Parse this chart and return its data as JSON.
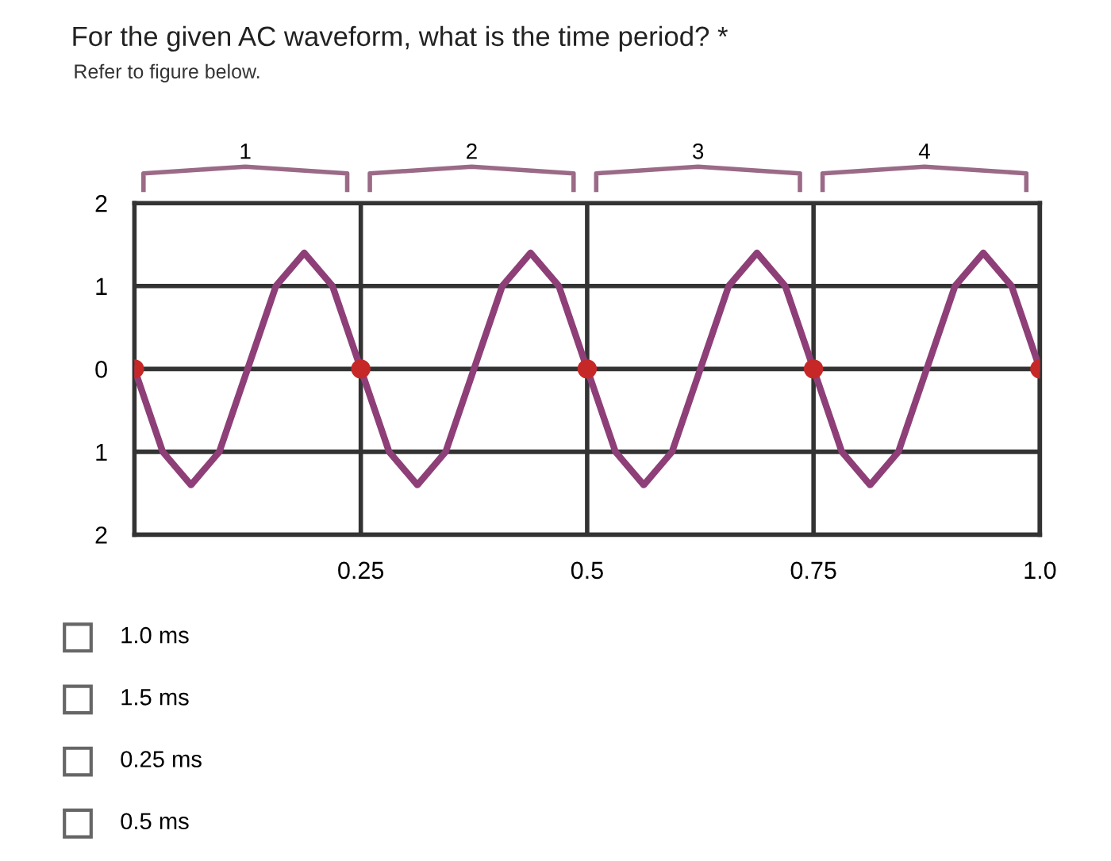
{
  "chart_data": {
    "type": "line",
    "title": "For the given AC waveform, what is the time period? *",
    "subtitle": "Refer to figure below.",
    "x": [
      0,
      0.03125,
      0.0625,
      0.09375,
      0.125,
      0.15625,
      0.1875,
      0.21875,
      0.25,
      0.28125,
      0.3125,
      0.34375,
      0.375,
      0.40625,
      0.4375,
      0.46875,
      0.5,
      0.53125,
      0.5625,
      0.59375,
      0.625,
      0.65625,
      0.6875,
      0.71875,
      0.75,
      0.78125,
      0.8125,
      0.84375,
      0.875,
      0.90625,
      0.9375,
      0.96875,
      1.0
    ],
    "series": [
      {
        "color": "#8e3f78",
        "values": [
          0,
          -1.0,
          -1.4,
          -1.0,
          0,
          1.0,
          1.4,
          1.0,
          0,
          -1.0,
          -1.4,
          -1.0,
          0,
          1.0,
          1.4,
          1.0,
          0,
          -1.0,
          -1.4,
          -1.0,
          0,
          1.0,
          1.4,
          1.0,
          0,
          -1.0,
          -1.4,
          -1.0,
          0,
          1.0,
          1.4,
          1.0,
          0
        ]
      },
      {
        "type": "scatter",
        "color": "#c62828",
        "x": [
          0,
          0.25,
          0.5,
          0.75,
          1.0
        ],
        "values": [
          0,
          0,
          0,
          0,
          0
        ],
        "marker": "circle"
      }
    ],
    "xlim": [
      0,
      1.0
    ],
    "ylim": [
      -2,
      2
    ],
    "xticks": [
      0.25,
      0.5,
      0.75,
      {
        "value": 1.0,
        "label": "1.0"
      }
    ],
    "yticks": [
      {
        "value": 2,
        "label": "2"
      },
      1,
      0,
      {
        "value": -1,
        "label": "1"
      },
      {
        "value": -2,
        "label": "2"
      }
    ],
    "grid": true,
    "annotations": [
      "1",
      "2",
      "3",
      "4",
      "1.0 ms",
      "1.5 ms",
      "0.25 ms",
      "0.5 ms"
    ]
  }
}
